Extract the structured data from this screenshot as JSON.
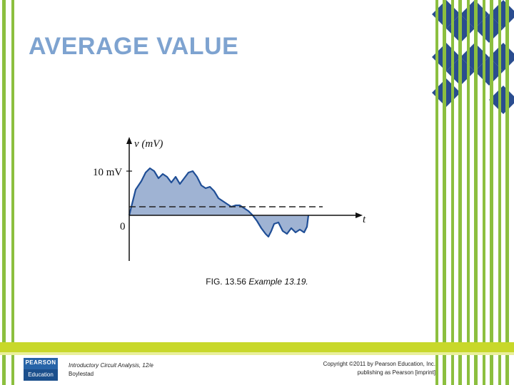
{
  "slide": {
    "title": "AVERAGE VALUE"
  },
  "figure": {
    "y_axis_label": "v (mV)",
    "x_axis_label": "t",
    "tick_label_10": "10 mV",
    "origin_label": "0",
    "caption_fig": "FIG. 13.56",
    "caption_example": "Example 13.19."
  },
  "footer": {
    "book_line1": "Introductory Circuit Analysis, 12/e",
    "book_line2": "Boylestad",
    "copyright_line1": "Copyright ©2011 by Pearson Education, Inc.",
    "copyright_line2": "publishing as Pearson [imprint]",
    "logo_top": "PEARSON",
    "logo_bottom": "Education"
  },
  "colors": {
    "title": "#7ea3d0",
    "stripe_green": "#8cbf3f",
    "diamond_blue": "#2a4d8f",
    "waveform_fill": "#9fb3d3",
    "footer_band": "#c8d82a"
  }
}
